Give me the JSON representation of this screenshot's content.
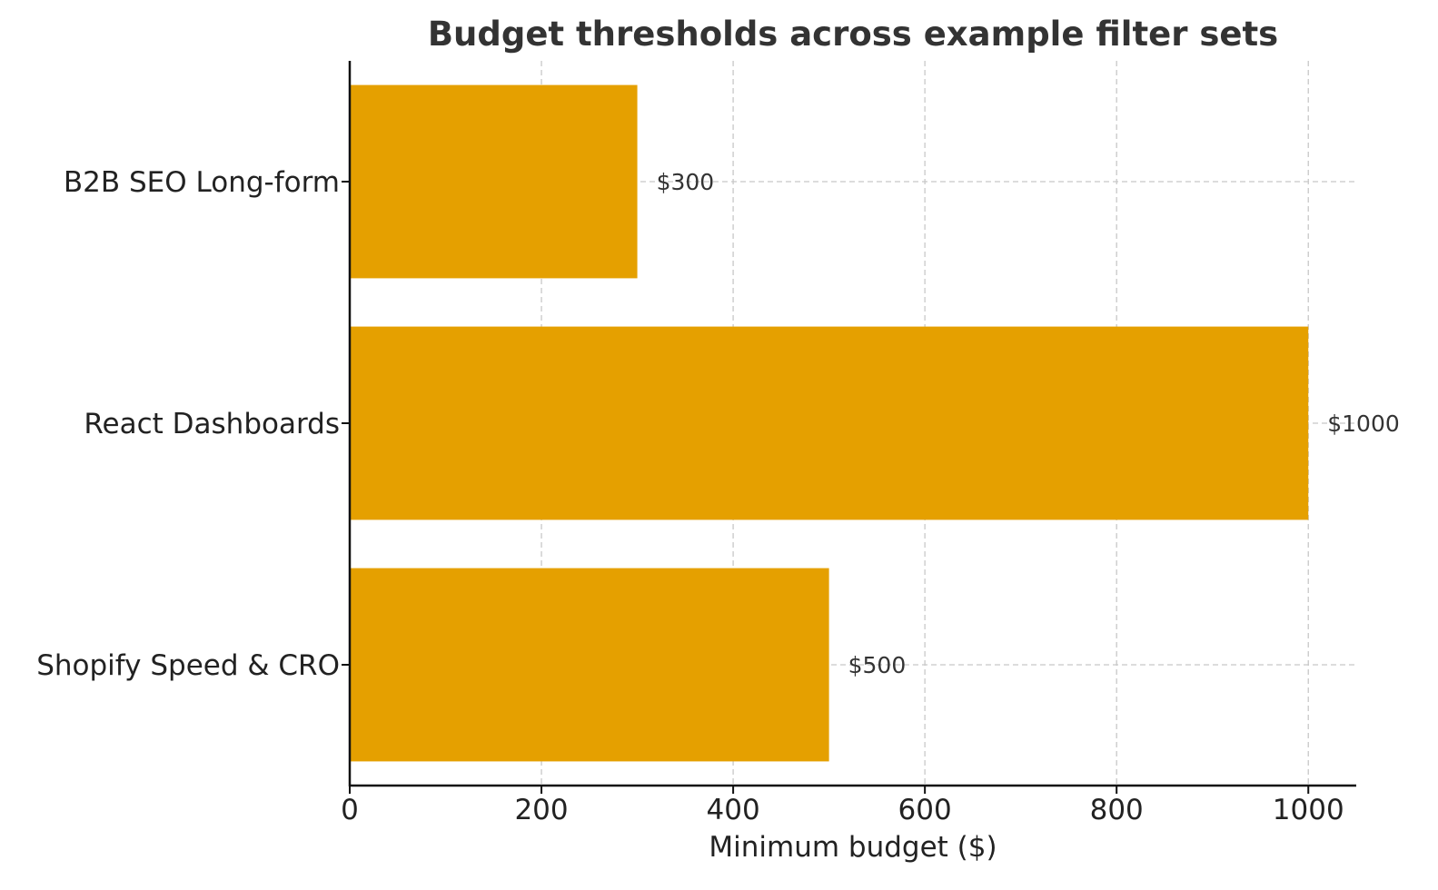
{
  "chart_data": {
    "type": "bar",
    "orientation": "horizontal",
    "title": "Budget thresholds across example filter sets",
    "xlabel": "Minimum budget ($)",
    "ylabel": "",
    "categories": [
      "B2B SEO Long-form",
      "React Dashboards",
      "Shopify Speed & CRO"
    ],
    "values": [
      300,
      1000,
      500
    ],
    "data_labels": [
      "$300",
      "$1000",
      "$500"
    ],
    "xlim": [
      0,
      1050
    ],
    "xticks": [
      0,
      200,
      400,
      600,
      800,
      1000
    ],
    "xtick_labels": [
      "0",
      "200",
      "400",
      "600",
      "800",
      "1000"
    ],
    "grid": true,
    "bar_color": "#E5A000"
  }
}
